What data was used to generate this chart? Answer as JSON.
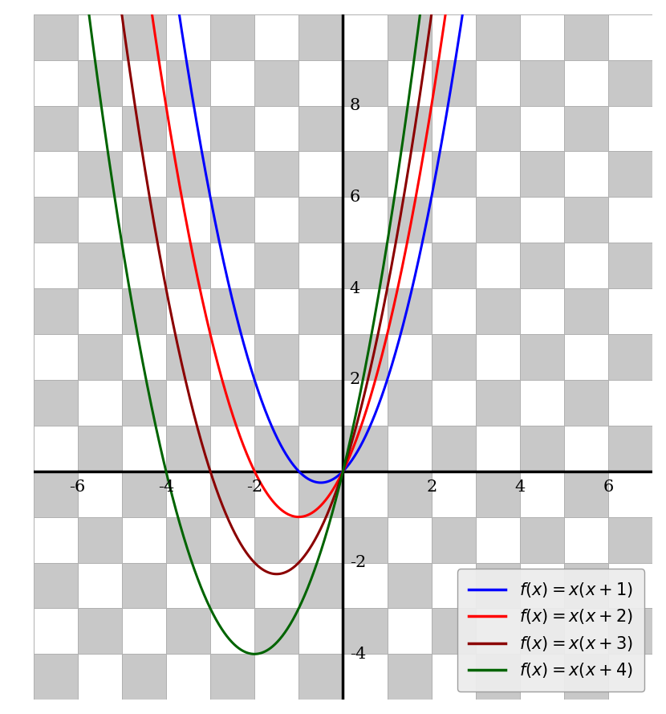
{
  "xlim": [
    -7,
    7
  ],
  "ylim": [
    -5,
    10
  ],
  "xticks": [
    -6,
    -4,
    -2,
    2,
    4,
    6
  ],
  "yticks": [
    -4,
    -2,
    2,
    4,
    6,
    8
  ],
  "functions": [
    {
      "label": "$f(x) = x(x+1)$",
      "color": "#0000ff",
      "b": 1
    },
    {
      "label": "$f(x) = x(x+2)$",
      "color": "#ff0000",
      "b": 2
    },
    {
      "label": "$f(x) = x(x+3)$",
      "color": "#8b0000",
      "b": 3
    },
    {
      "label": "$f(x) = x(x+4)$",
      "color": "#006400",
      "b": 4
    }
  ],
  "grid_color": "#b0b0b0",
  "grid_linewidth": 0.7,
  "axis_linewidth": 2.5,
  "curve_linewidth": 2.2,
  "checker_light": "#c8c8c8",
  "checker_dark": "#e8e8e8",
  "tick_fontsize": 15,
  "legend_fontsize": 15
}
